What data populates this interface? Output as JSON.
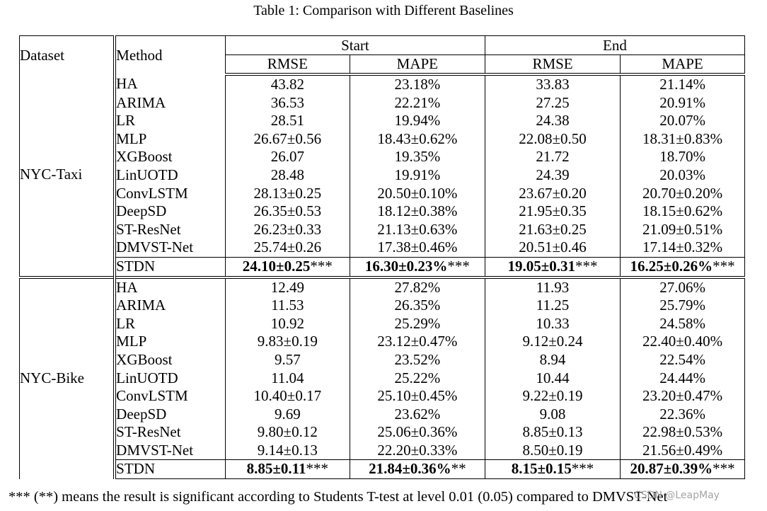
{
  "caption": "Table 1: Comparison with Different Baselines",
  "table": {
    "header": {
      "dataset": "Dataset",
      "method": "Method",
      "group_start": "Start",
      "group_end": "End",
      "rmse_start": "RMSE",
      "mape_start": "MAPE",
      "rmse_end": "RMSE",
      "mape_end": "MAPE"
    },
    "groups": [
      {
        "dataset": "NYC-Taxi",
        "rows": [
          {
            "method": "HA",
            "start_rmse": "43.82",
            "start_mape": "23.18%",
            "end_rmse": "33.83",
            "end_mape": "21.14%"
          },
          {
            "method": "ARIMA",
            "start_rmse": "36.53",
            "start_mape": "22.21%",
            "end_rmse": "27.25",
            "end_mape": "20.91%"
          },
          {
            "method": "LR",
            "start_rmse": "28.51",
            "start_mape": "19.94%",
            "end_rmse": "24.38",
            "end_mape": "20.07%"
          },
          {
            "method": "MLP",
            "start_rmse": "26.67±0.56",
            "start_mape": "18.43±0.62%",
            "end_rmse": "22.08±0.50",
            "end_mape": "18.31±0.83%"
          },
          {
            "method": "XGBoost",
            "start_rmse": "26.07",
            "start_mape": "19.35%",
            "end_rmse": "21.72",
            "end_mape": "18.70%"
          },
          {
            "method": "LinUOTD",
            "start_rmse": "28.48",
            "start_mape": "19.91%",
            "end_rmse": "24.39",
            "end_mape": "20.03%"
          },
          {
            "method": "ConvLSTM",
            "start_rmse": "28.13±0.25",
            "start_mape": "20.50±0.10%",
            "end_rmse": "23.67±0.20",
            "end_mape": "20.70±0.20%"
          },
          {
            "method": "DeepSD",
            "start_rmse": "26.35±0.53",
            "start_mape": "18.12±0.38%",
            "end_rmse": "21.95±0.35",
            "end_mape": "18.15±0.62%"
          },
          {
            "method": "ST-ResNet",
            "start_rmse": "26.23±0.33",
            "start_mape": "21.13±0.63%",
            "end_rmse": "21.63±0.25",
            "end_mape": "21.09±0.51%"
          },
          {
            "method": "DMVST-Net",
            "start_rmse": "25.74±0.26",
            "start_mape": "17.38±0.46%",
            "end_rmse": "20.51±0.46",
            "end_mape": "17.14±0.32%"
          }
        ],
        "best": {
          "method": "STDN",
          "start_rmse": "24.10±0.25",
          "start_rmse_sig": "***",
          "start_mape": "16.30±0.23%",
          "start_mape_sig": "***",
          "end_rmse": "19.05±0.31",
          "end_rmse_sig": "***",
          "end_mape": "16.25±0.26%",
          "end_mape_sig": "***"
        }
      },
      {
        "dataset": "NYC-Bike",
        "rows": [
          {
            "method": "HA",
            "start_rmse": "12.49",
            "start_mape": "27.82%",
            "end_rmse": "11.93",
            "end_mape": "27.06%"
          },
          {
            "method": "ARIMA",
            "start_rmse": "11.53",
            "start_mape": "26.35%",
            "end_rmse": "11.25",
            "end_mape": "25.79%"
          },
          {
            "method": "LR",
            "start_rmse": "10.92",
            "start_mape": "25.29%",
            "end_rmse": "10.33",
            "end_mape": "24.58%"
          },
          {
            "method": "MLP",
            "start_rmse": "9.83±0.19",
            "start_mape": "23.12±0.47%",
            "end_rmse": "9.12±0.24",
            "end_mape": "22.40±0.40%"
          },
          {
            "method": "XGBoost",
            "start_rmse": "9.57",
            "start_mape": "23.52%",
            "end_rmse": "8.94",
            "end_mape": "22.54%"
          },
          {
            "method": "LinUOTD",
            "start_rmse": "11.04",
            "start_mape": "25.22%",
            "end_rmse": "10.44",
            "end_mape": "24.44%"
          },
          {
            "method": "ConvLSTM",
            "start_rmse": "10.40±0.17",
            "start_mape": "25.10±0.45%",
            "end_rmse": "9.22±0.19",
            "end_mape": "23.20±0.47%"
          },
          {
            "method": "DeepSD",
            "start_rmse": "9.69",
            "start_mape": "23.62%",
            "end_rmse": "9.08",
            "end_mape": "22.36%"
          },
          {
            "method": "ST-ResNet",
            "start_rmse": "9.80±0.12",
            "start_mape": "25.06±0.36%",
            "end_rmse": "8.85±0.13",
            "end_mape": "22.98±0.53%"
          },
          {
            "method": "DMVST-Net",
            "start_rmse": "9.14±0.13",
            "start_mape": "22.20±0.33%",
            "end_rmse": "8.50±0.19",
            "end_mape": "21.56±0.49%"
          }
        ],
        "best": {
          "method": "STDN",
          "start_rmse": "8.85±0.11",
          "start_rmse_sig": "***",
          "start_mape": "21.84±0.36%",
          "start_mape_sig": "**",
          "end_rmse": "8.15±0.15",
          "end_rmse_sig": "***",
          "end_mape": "20.87±0.39%",
          "end_mape_sig": "***"
        }
      }
    ]
  },
  "footnote": "*** (**) means the result is significant according to Students T-test at level 0.01 (0.05) compared to DMVST-Net",
  "watermark": "CSDN @LeapMay"
}
